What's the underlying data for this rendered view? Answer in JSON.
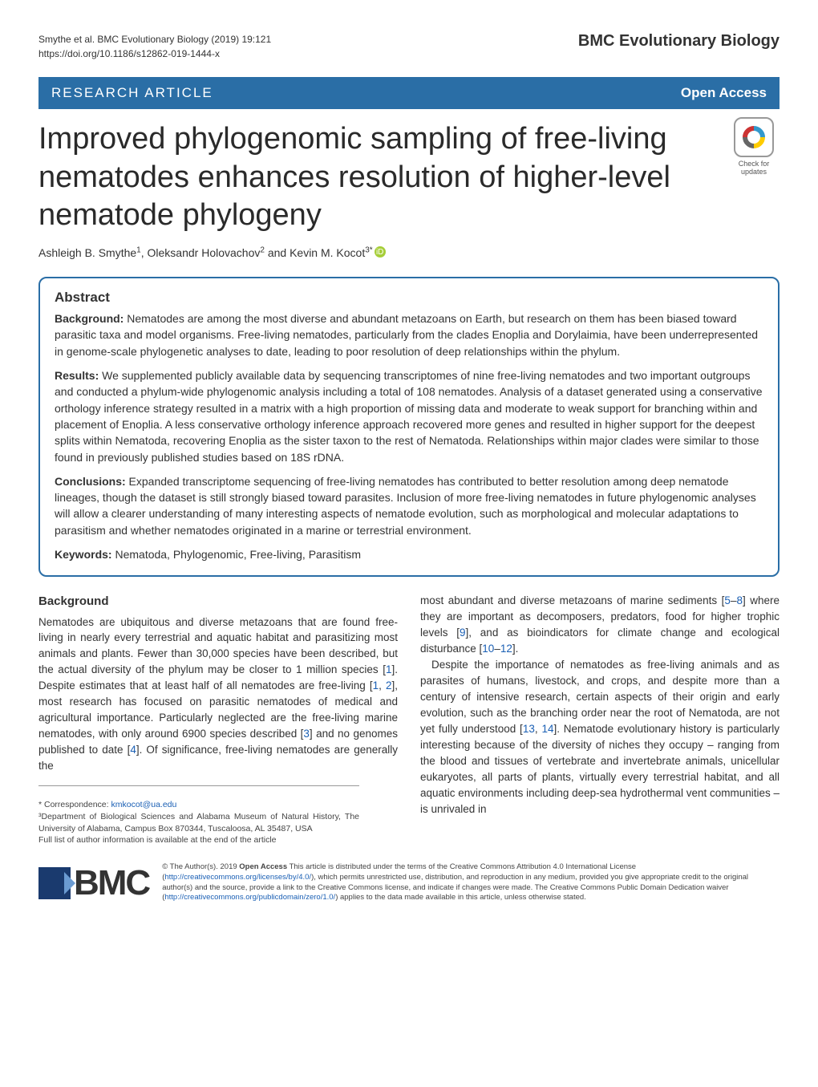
{
  "header": {
    "citation_line1": "Smythe et al. BMC Evolutionary Biology          (2019) 19:121",
    "citation_line2": "https://doi.org/10.1186/s12862-019-1444-x",
    "journal": "BMC Evolutionary Biology"
  },
  "article_bar": {
    "left": "RESEARCH ARTICLE",
    "right": "Open Access"
  },
  "title": "Improved phylogenomic sampling of free-living nematodes enhances resolution of higher-level nematode phylogeny",
  "authors_html": "Ashleigh B. Smythe¹, Oleksandr Holovachov² and Kevin M. Kocot³*",
  "crossmark_label": "Check for updates",
  "abstract": {
    "heading": "Abstract",
    "background_label": "Background:",
    "background_text": " Nematodes are among the most diverse and abundant metazoans on Earth, but research on them has been biased toward parasitic taxa and model organisms. Free-living nematodes, particularly from the clades Enoplia and Dorylaimia, have been underrepresented in genome-scale phylogenetic analyses to date, leading to poor resolution of deep relationships within the phylum.",
    "results_label": "Results:",
    "results_text": " We supplemented publicly available data by sequencing transcriptomes of nine free-living nematodes and two important outgroups and conducted a phylum-wide phylogenomic analysis including a total of 108 nematodes. Analysis of a dataset generated using a conservative orthology inference strategy resulted in a matrix with a high proportion of missing data and moderate to weak support for branching within and placement of Enoplia. A less conservative orthology inference approach recovered more genes and resulted in higher support for the deepest splits within Nematoda, recovering Enoplia as the sister taxon to the rest of Nematoda. Relationships within major clades were similar to those found in previously published studies based on 18S rDNA.",
    "conclusions_label": "Conclusions:",
    "conclusions_text": " Expanded transcriptome sequencing of free-living nematodes has contributed to better resolution among deep nematode lineages, though the dataset is still strongly biased toward parasites. Inclusion of more free-living nematodes in future phylogenomic analyses will allow a clearer understanding of many interesting aspects of nematode evolution, such as morphological and molecular adaptations to parasitism and whether nematodes originated in a marine or terrestrial environment.",
    "keywords_label": "Keywords:",
    "keywords_text": " Nematoda, Phylogenomic, Free-living, Parasitism"
  },
  "background": {
    "heading": "Background",
    "col1_p1a": "Nematodes are ubiquitous and diverse metazoans that are found free-living in nearly every terrestrial and aquatic habitat and parasitizing most animals and plants. Fewer than 30,000 species have been described, but the actual diversity of the phylum may be closer to 1 million species [",
    "cite1": "1",
    "col1_p1b": "]. Despite estimates that at least half of all nematodes are free-living [",
    "cite1b": "1",
    "col1_p1c": ", ",
    "cite2": "2",
    "col1_p1d": "], most research has focused on parasitic nematodes of medical and agricultural importance. Particularly neglected are the free-living marine nematodes, with only around 6900 species described [",
    "cite3": "3",
    "col1_p1e": "] and no genomes published to date [",
    "cite4": "4",
    "col1_p1f": "]. Of significance, free-living nematodes are generally the",
    "col2_p1a": "most abundant and diverse metazoans of marine sediments [",
    "cite5": "5",
    "col2_p1b": "–",
    "cite8": "8",
    "col2_p1c": "] where they are important as decomposers, predators, food for higher trophic levels [",
    "cite9": "9",
    "col2_p1d": "], and as bioindicators for climate change and ecological disturbance [",
    "cite10": "10",
    "col2_p1e": "–",
    "cite12": "12",
    "col2_p1f": "].",
    "col2_p2a": "Despite the importance of nematodes as free-living animals and as parasites of humans, livestock, and crops, and despite more than a century of intensive research, certain aspects of their origin and early evolution, such as the branching order near the root of Nematoda, are not yet fully understood [",
    "cite13": "13",
    "col2_p2b": ", ",
    "cite14": "14",
    "col2_p2c": "]. Nematode evolutionary history is particularly interesting because of the diversity of niches they occupy – ranging from the blood and tissues of vertebrate and invertebrate animals, unicellular eukaryotes, all parts of plants, virtually every terrestrial habitat, and all aquatic environments including deep-sea hydrothermal vent communities – is unrivaled in"
  },
  "correspondence": {
    "label": "* Correspondence: ",
    "email": "kmkocot@ua.edu",
    "affil": "³Department of Biological Sciences and Alabama Museum of Natural History, The University of Alabama, Campus Box 870344, Tuscaloosa, AL 35487, USA",
    "full_list": "Full list of author information is available at the end of the article"
  },
  "license": {
    "text_a": "© The Author(s). 2019 ",
    "open_access": "Open Access",
    "text_b": " This article is distributed under the terms of the Creative Commons Attribution 4.0 International License (",
    "url1": "http://creativecommons.org/licenses/by/4.0/",
    "text_c": "), which permits unrestricted use, distribution, and reproduction in any medium, provided you give appropriate credit to the original author(s) and the source, provide a link to the Creative Commons license, and indicate if changes were made. The Creative Commons Public Domain Dedication waiver (",
    "url2": "http://creativecommons.org/publicdomain/zero/1.0/",
    "text_d": ") applies to the data made available in this article, unless otherwise stated."
  },
  "bmc_logo_text": "BMC",
  "colors": {
    "brand_blue": "#2a6ea6",
    "link_blue": "#1a5fb4",
    "text": "#333333",
    "background": "#ffffff"
  }
}
